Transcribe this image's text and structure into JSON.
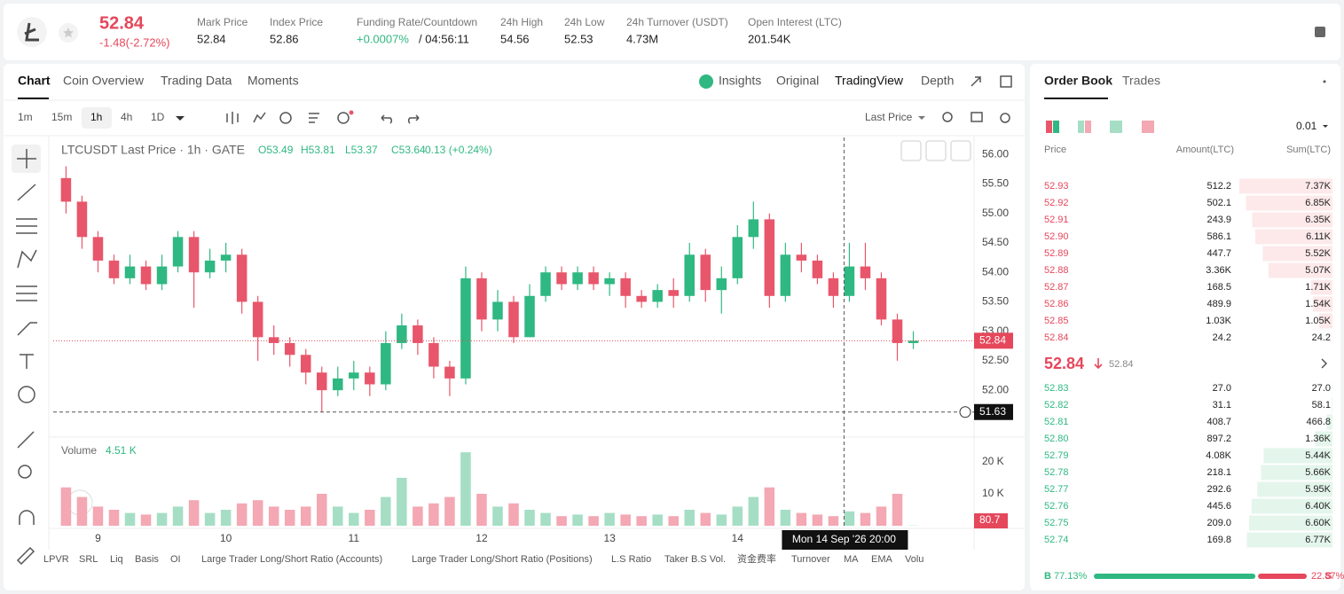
{
  "header": {
    "price": "52.84",
    "change": "-1.48(-2.72%)",
    "stats": [
      {
        "label": "Mark Price",
        "value": "52.84"
      },
      {
        "label": "Index Price",
        "value": "52.86"
      },
      {
        "label": "Funding Rate/Countdown",
        "value": "+0.0007%",
        "extra": "/ 04:56:11"
      },
      {
        "label": "24h High",
        "value": "54.56"
      },
      {
        "label": "24h Low",
        "value": "52.53"
      },
      {
        "label": "24h Turnover (USDT)",
        "value": "4.73M"
      },
      {
        "label": "Open Interest (LTC)",
        "value": "201.54K"
      }
    ]
  },
  "tabs": [
    "Chart",
    "Coin Overview",
    "Trading Data",
    "Moments"
  ],
  "views": [
    "Insights",
    "Original",
    "TradingView",
    "Depth"
  ],
  "intervals": [
    "1m",
    "15m",
    "1h",
    "4h",
    "1D"
  ],
  "price_type": "Last Price",
  "chart_data": {
    "type": "candlestick",
    "legend_title": "LTCUSDT Last Price · 1h · GATE",
    "legend_ohlc": [
      "O53.49",
      "H53.81",
      "L53.37",
      "C53.64"
    ],
    "legend_change": "0.13 (+0.24%)",
    "volume_title": "Volume",
    "volume_value": "4.51 K",
    "up_color": "#2fb882",
    "down_color": "#e8566b",
    "volume_up_color": "#a6dec5",
    "volume_down_color": "#f3a8b3",
    "x": [
      8.75,
      8.875,
      9,
      9.125,
      9.25,
      9.375,
      9.5,
      9.625,
      9.75,
      9.875,
      10,
      10.125,
      10.25,
      10.375,
      10.5,
      10.625,
      10.75,
      10.875,
      11,
      11.125,
      11.25,
      11.375,
      11.5,
      11.625,
      11.75,
      11.875,
      12,
      12.125,
      12.25,
      12.375,
      12.5,
      12.625,
      12.75,
      12.875,
      13,
      13.125,
      13.25,
      13.375,
      13.5,
      13.625,
      13.75,
      13.875,
      14,
      14.125,
      14.25,
      14.375,
      14.5,
      14.625,
      14.75,
      14.875,
      15,
      15.125,
      15.25,
      15.375
    ],
    "open": [
      55.6,
      55.2,
      54.6,
      54.2,
      53.9,
      54.1,
      53.8,
      54.1,
      54.6,
      54.0,
      54.2,
      54.3,
      53.5,
      52.9,
      52.8,
      52.6,
      52.3,
      52.0,
      52.2,
      52.3,
      52.1,
      52.8,
      53.1,
      52.8,
      52.4,
      52.2,
      53.9,
      53.2,
      53.5,
      52.9,
      53.6,
      54.0,
      53.8,
      54.0,
      53.8,
      53.9,
      53.6,
      53.5,
      53.7,
      53.6,
      54.3,
      53.7,
      53.9,
      54.6,
      54.9,
      53.6,
      54.3,
      54.2,
      53.9,
      53.6,
      54.1,
      53.9,
      53.2,
      52.8
    ],
    "high": [
      55.8,
      55.3,
      54.7,
      54.3,
      54.3,
      54.2,
      54.3,
      54.7,
      54.7,
      54.4,
      54.5,
      54.4,
      53.6,
      53.1,
      52.9,
      52.7,
      52.4,
      52.4,
      52.5,
      52.4,
      53.0,
      53.3,
      53.2,
      52.9,
      52.5,
      54.1,
      54.0,
      53.7,
      53.6,
      53.8,
      54.1,
      54.1,
      54.1,
      54.1,
      54.0,
      54.0,
      53.7,
      53.8,
      53.9,
      54.5,
      54.4,
      54.1,
      54.8,
      55.2,
      55.0,
      54.5,
      54.5,
      54.3,
      54.0,
      54.5,
      54.5,
      54.0,
      53.3,
      53.0
    ],
    "low": [
      55.0,
      54.4,
      54.0,
      53.8,
      53.8,
      53.7,
      53.7,
      54.0,
      53.4,
      53.9,
      54.0,
      53.3,
      52.5,
      52.6,
      52.4,
      52.1,
      51.63,
      51.9,
      52.0,
      51.9,
      52.0,
      52.7,
      52.6,
      52.2,
      51.9,
      52.1,
      53.0,
      53.0,
      52.8,
      52.9,
      53.5,
      53.7,
      53.7,
      53.7,
      53.6,
      53.4,
      53.4,
      53.4,
      53.4,
      53.5,
      53.5,
      53.3,
      53.8,
      54.4,
      53.4,
      53.5,
      54.0,
      53.8,
      53.4,
      53.5,
      53.7,
      53.1,
      52.5,
      52.7
    ],
    "close": [
      55.2,
      54.6,
      54.2,
      53.9,
      54.1,
      53.8,
      54.1,
      54.6,
      54.0,
      54.2,
      54.3,
      53.5,
      52.9,
      52.8,
      52.6,
      52.3,
      52.0,
      52.2,
      52.3,
      52.1,
      52.8,
      53.1,
      52.8,
      52.4,
      52.2,
      53.9,
      53.2,
      53.5,
      52.9,
      53.6,
      54.0,
      53.8,
      54.0,
      53.8,
      53.9,
      53.6,
      53.5,
      53.7,
      53.6,
      54.3,
      53.7,
      53.9,
      54.6,
      54.9,
      53.6,
      54.3,
      54.2,
      53.9,
      53.6,
      54.1,
      53.9,
      53.2,
      52.8,
      52.84
    ],
    "volume": [
      12000,
      9000,
      6000,
      5000,
      4000,
      3500,
      4000,
      6000,
      8000,
      4000,
      5000,
      7000,
      8000,
      6000,
      5000,
      6000,
      10000,
      6000,
      4000,
      5000,
      9000,
      15000,
      6000,
      7000,
      9000,
      23000,
      10000,
      6000,
      7000,
      5000,
      4000,
      3000,
      3500,
      3000,
      4000,
      3500,
      3000,
      3500,
      3000,
      5000,
      4000,
      3500,
      6000,
      9000,
      12000,
      5000,
      4000,
      3500,
      3000,
      4500,
      4000,
      6000,
      10000,
      80.7
    ],
    "xlim": [
      8.65,
      15.85
    ],
    "xticks": [
      9,
      10,
      11,
      12,
      13,
      14
    ],
    "ylim": [
      51.25,
      56.29
    ],
    "yticks": [
      {
        "value": 52,
        "label": "52.00"
      },
      {
        "value": 52.5,
        "label": "52.50"
      },
      {
        "value": 53,
        "label": "53.00"
      },
      {
        "value": 53.5,
        "label": "53.50"
      },
      {
        "value": 54,
        "label": "54.00"
      },
      {
        "value": 54.5,
        "label": "54.50"
      },
      {
        "value": 55,
        "label": "55.00"
      },
      {
        "value": 55.5,
        "label": "55.50"
      },
      {
        "value": 56,
        "label": "56.00"
      }
    ],
    "volume_ylim": [
      0,
      27200
    ],
    "volume_yticks": [
      {
        "value": 10000,
        "label": "10 K"
      },
      {
        "value": 20000,
        "label": "20 K"
      }
    ],
    "crosshair_price": 51.63,
    "crosshair_x": 14.8333,
    "crosshair_label": "Mon 14 Sep '26 20:00"
  },
  "indicators": [
    "LPVR",
    "SRL",
    "Liq",
    "Basis",
    "OI",
    "Large Trader Long/Short Ratio (Accounts)",
    "Large Trader Long/Short Ratio (Positions)",
    "L.S Ratio",
    "Taker B.S Vol.",
    "资金费率",
    "Turnover",
    "MA",
    "EMA",
    "Volu"
  ],
  "order_book": {
    "tabs": [
      "Order Book",
      "Trades"
    ],
    "precision": "0.01",
    "columns": [
      "Price",
      "Amount(LTC)",
      "Sum(LTC)"
    ],
    "asks": [
      {
        "price": "52.93",
        "amount": "512.2",
        "sum": {
          "value": 7370,
          "label": "7.37K"
        }
      },
      {
        "price": "52.92",
        "amount": "502.1",
        "sum": {
          "value": 6850,
          "label": "6.85K"
        }
      },
      {
        "price": "52.91",
        "amount": "243.9",
        "sum": {
          "value": 6350,
          "label": "6.35K"
        }
      },
      {
        "price": "52.90",
        "amount": "586.1",
        "sum": {
          "value": 6110,
          "label": "6.11K"
        }
      },
      {
        "price": "52.89",
        "amount": "447.7",
        "sum": {
          "value": 5520,
          "label": "5.52K"
        }
      },
      {
        "price": "52.88",
        "amount": "3.36K",
        "sum": {
          "value": 5070,
          "label": "5.07K"
        }
      },
      {
        "price": "52.87",
        "amount": "168.5",
        "sum": {
          "value": 1710,
          "label": "1.71K"
        }
      },
      {
        "price": "52.86",
        "amount": "489.9",
        "sum": {
          "value": 1540,
          "label": "1.54K"
        }
      },
      {
        "price": "52.85",
        "amount": "1.03K",
        "sum": {
          "value": 1050,
          "label": "1.05K"
        }
      },
      {
        "price": "52.84",
        "amount": "24.2",
        "sum": 24.2
      }
    ],
    "mid": "52.84",
    "mark": "52.84",
    "bids": [
      {
        "price": "52.83",
        "amount": "27.0",
        "sum": {
          "value": 27,
          "label": "27.0"
        }
      },
      {
        "price": "52.82",
        "amount": "31.1",
        "sum": 58.1
      },
      {
        "price": "52.81",
        "amount": "408.7",
        "sum": 466.8
      },
      {
        "price": "52.80",
        "amount": "897.2",
        "sum": {
          "value": 1360,
          "label": "1.36K"
        }
      },
      {
        "price": "52.79",
        "amount": "4.08K",
        "sum": {
          "value": 5440,
          "label": "5.44K"
        }
      },
      {
        "price": "52.78",
        "amount": "218.1",
        "sum": {
          "value": 5660,
          "label": "5.66K"
        }
      },
      {
        "price": "52.77",
        "amount": "292.6",
        "sum": {
          "value": 5950,
          "label": "5.95K"
        }
      },
      {
        "price": "52.76",
        "amount": "445.6",
        "sum": {
          "value": 6400,
          "label": "6.40K"
        }
      },
      {
        "price": "52.75",
        "amount": "209.0",
        "sum": {
          "value": 6600,
          "label": "6.60K"
        }
      },
      {
        "price": "52.74",
        "amount": "169.8",
        "sum": {
          "value": 6770,
          "label": "6.77K"
        }
      }
    ],
    "buy": {
      "label": "B",
      "value": 77.13,
      "text": "77.13%"
    },
    "sell": {
      "label": "S",
      "value": 22.87,
      "text": "22.87%"
    }
  }
}
